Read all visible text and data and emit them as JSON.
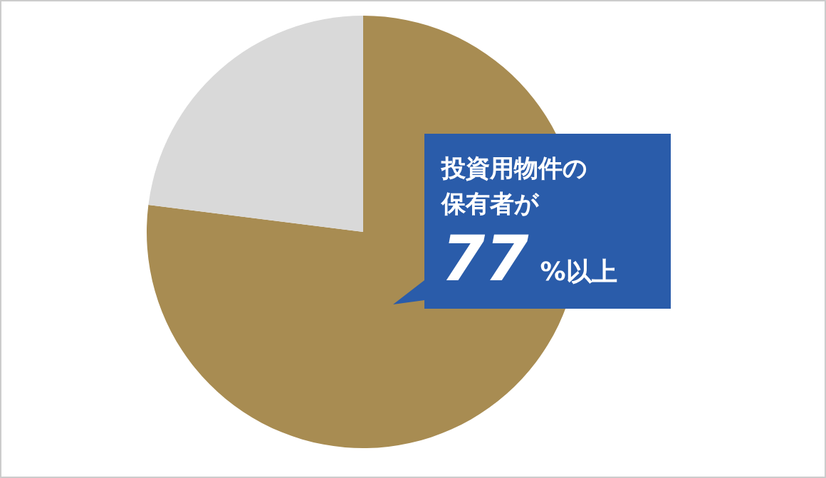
{
  "chart_data": {
    "type": "pie",
    "categories": [
      null,
      null
    ],
    "values": [
      77,
      23
    ],
    "colors": [
      "#a88c52",
      "#d9d9d9"
    ],
    "annotations": [
      "投資用物件の",
      "保有者が",
      "77%以上"
    ]
  }
}
